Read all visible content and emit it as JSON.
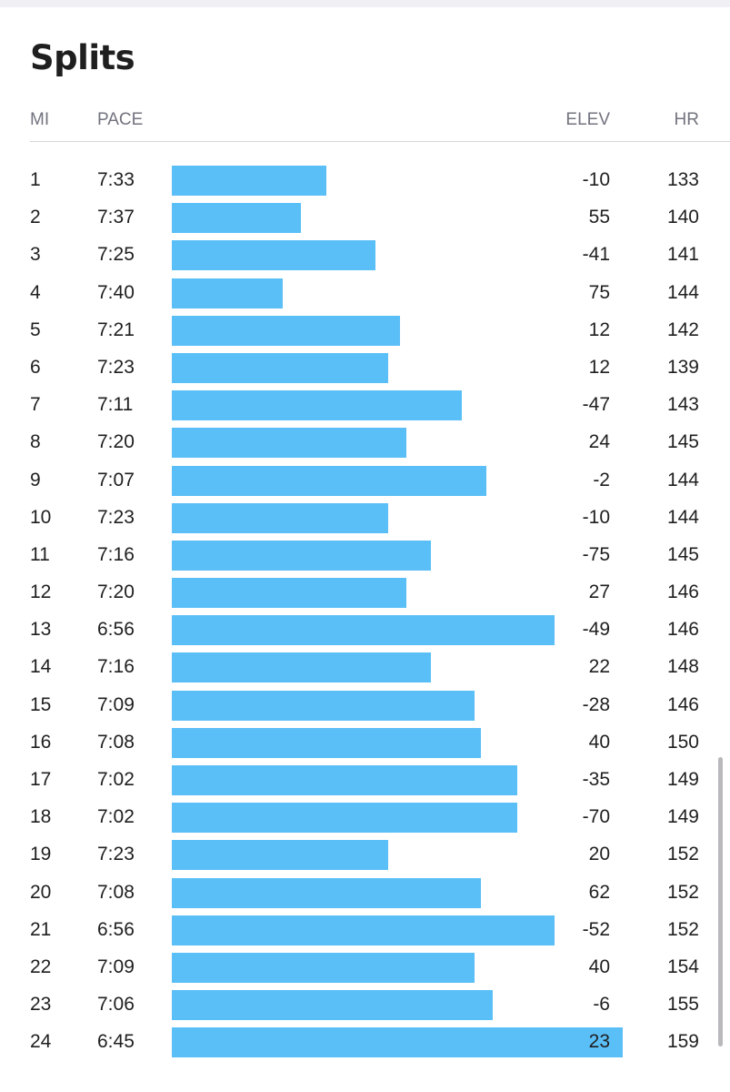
{
  "title": "Splits",
  "columns": {
    "mi": "MI",
    "pace": "PACE",
    "elev": "ELEV",
    "hr": "HR"
  },
  "colors": {
    "bar": "#5bbff7",
    "header_text": "#73737f",
    "text": "#1f1f1f"
  },
  "splits": [
    {
      "mi": "1",
      "pace": "7:33",
      "elev": "-10",
      "hr": "133"
    },
    {
      "mi": "2",
      "pace": "7:37",
      "elev": "55",
      "hr": "140"
    },
    {
      "mi": "3",
      "pace": "7:25",
      "elev": "-41",
      "hr": "141"
    },
    {
      "mi": "4",
      "pace": "7:40",
      "elev": "75",
      "hr": "144"
    },
    {
      "mi": "5",
      "pace": "7:21",
      "elev": "12",
      "hr": "142"
    },
    {
      "mi": "6",
      "pace": "7:23",
      "elev": "12",
      "hr": "139"
    },
    {
      "mi": "7",
      "pace": "7:11",
      "elev": "-47",
      "hr": "143"
    },
    {
      "mi": "8",
      "pace": "7:20",
      "elev": "24",
      "hr": "145"
    },
    {
      "mi": "9",
      "pace": "7:07",
      "elev": "-2",
      "hr": "144"
    },
    {
      "mi": "10",
      "pace": "7:23",
      "elev": "-10",
      "hr": "144"
    },
    {
      "mi": "11",
      "pace": "7:16",
      "elev": "-75",
      "hr": "145"
    },
    {
      "mi": "12",
      "pace": "7:20",
      "elev": "27",
      "hr": "146"
    },
    {
      "mi": "13",
      "pace": "6:56",
      "elev": "-49",
      "hr": "146"
    },
    {
      "mi": "14",
      "pace": "7:16",
      "elev": "22",
      "hr": "148"
    },
    {
      "mi": "15",
      "pace": "7:09",
      "elev": "-28",
      "hr": "146"
    },
    {
      "mi": "16",
      "pace": "7:08",
      "elev": "40",
      "hr": "150"
    },
    {
      "mi": "17",
      "pace": "7:02",
      "elev": "-35",
      "hr": "149"
    },
    {
      "mi": "18",
      "pace": "7:02",
      "elev": "-70",
      "hr": "149"
    },
    {
      "mi": "19",
      "pace": "7:23",
      "elev": "20",
      "hr": "152"
    },
    {
      "mi": "20",
      "pace": "7:08",
      "elev": "62",
      "hr": "152"
    },
    {
      "mi": "21",
      "pace": "6:56",
      "elev": "-52",
      "hr": "152"
    },
    {
      "mi": "22",
      "pace": "7:09",
      "elev": "40",
      "hr": "154"
    },
    {
      "mi": "23",
      "pace": "7:06",
      "elev": "-6",
      "hr": "155"
    },
    {
      "mi": "24",
      "pace": "6:45",
      "elev": "23",
      "hr": "159"
    }
  ]
}
